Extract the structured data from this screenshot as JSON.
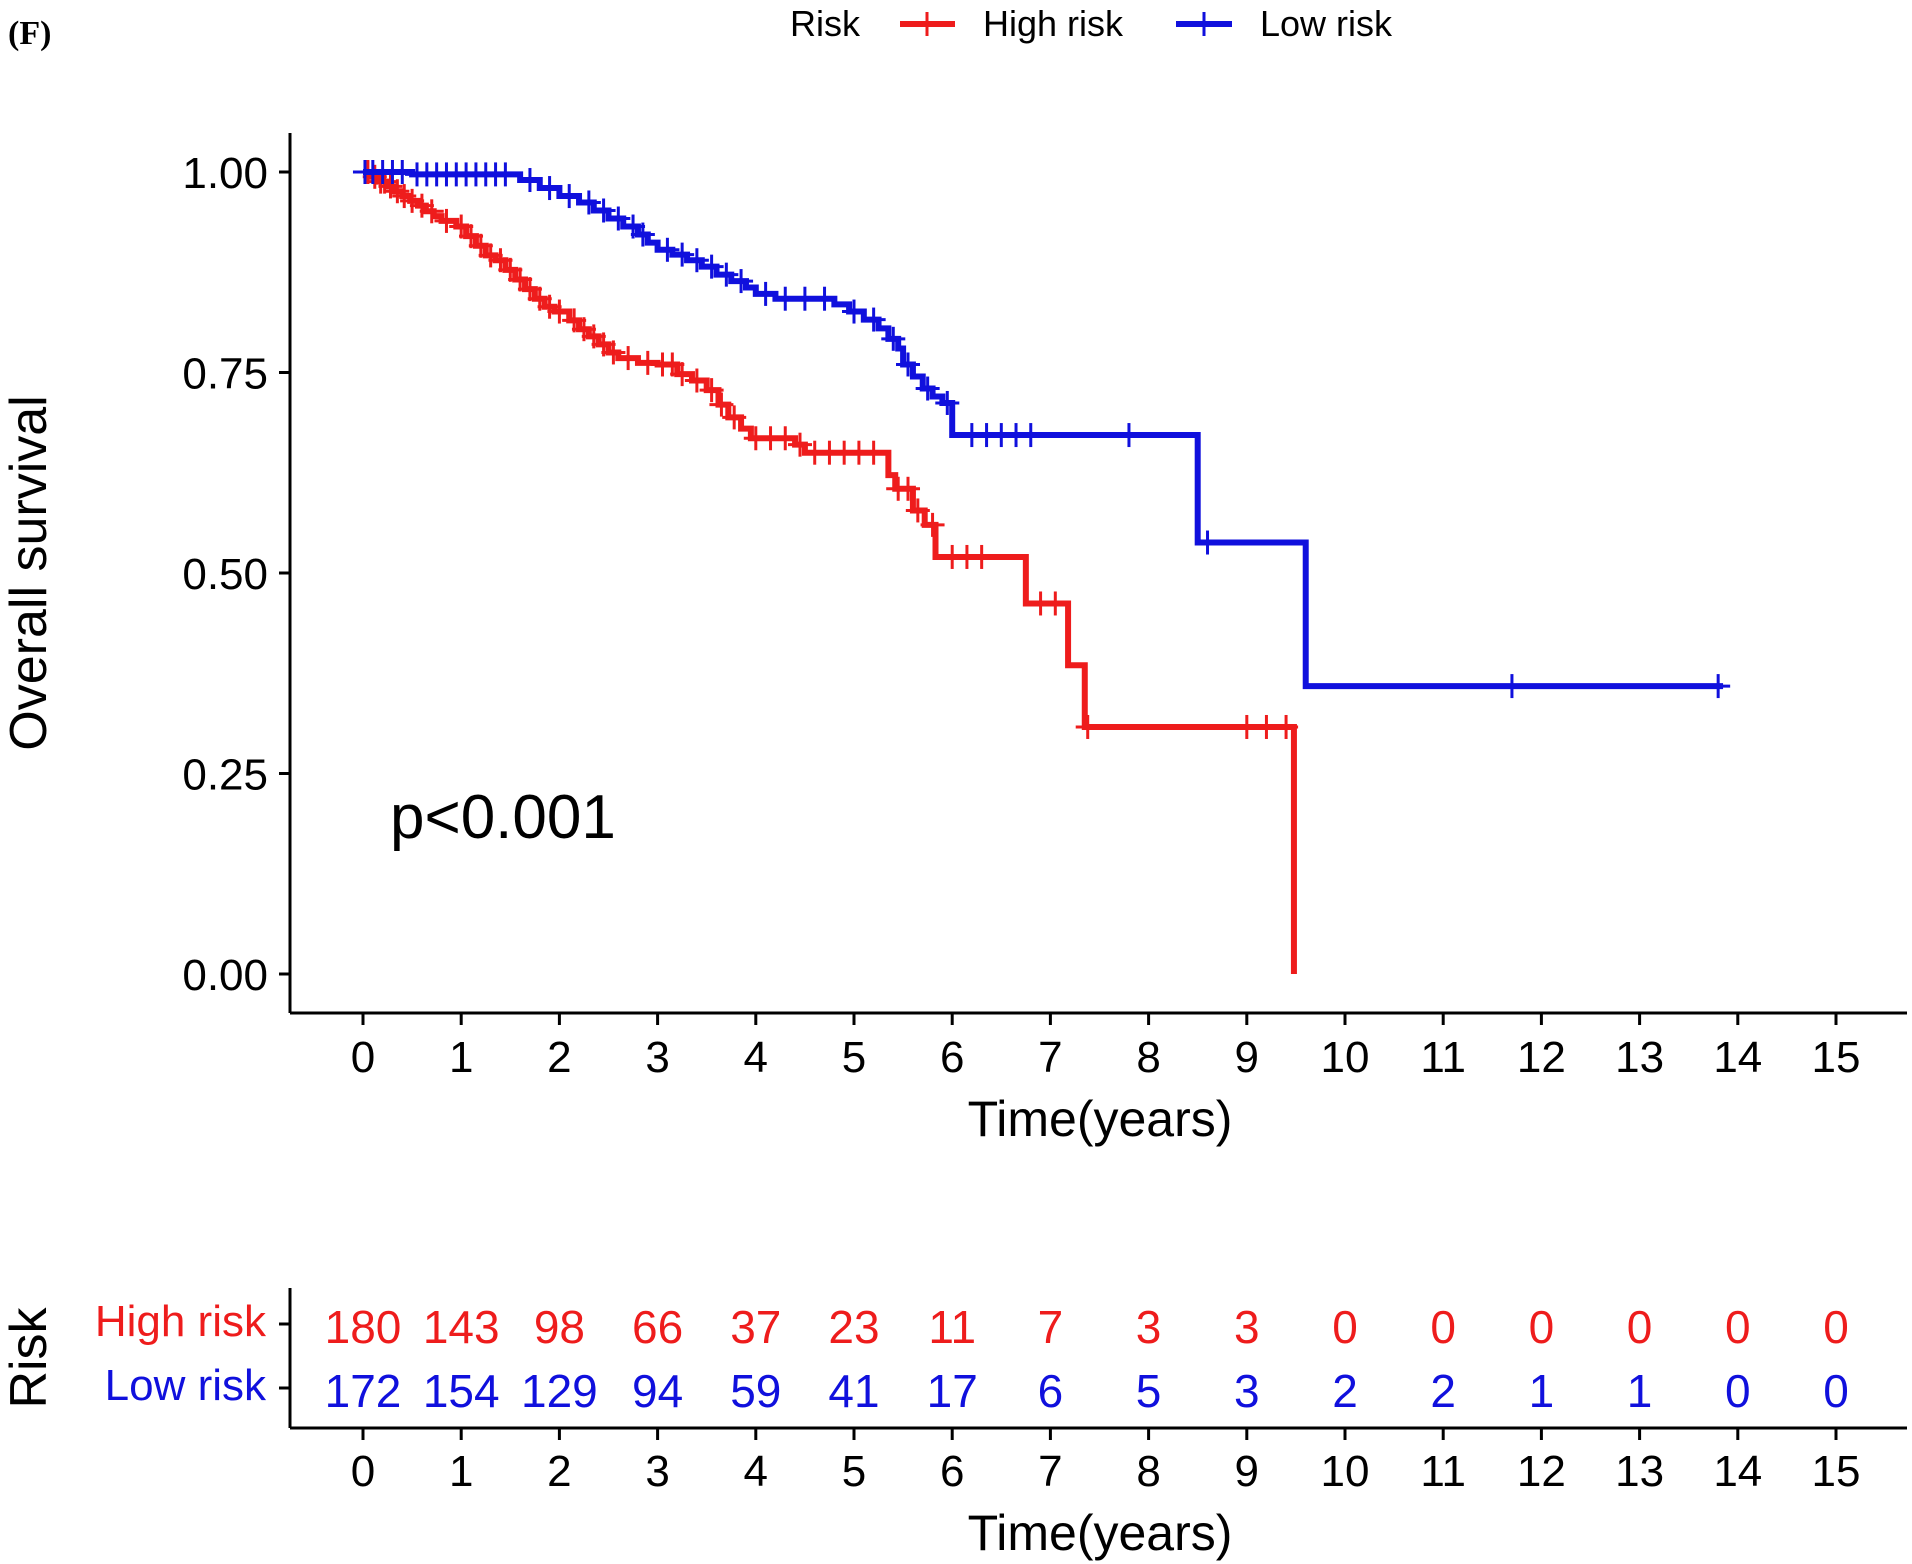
{
  "panel_label": "(F)",
  "chart_data": {
    "type": "line",
    "subtype": "kaplan-meier",
    "xlabel": "Time(years)",
    "ylabel": "Overall survival",
    "xlim": [
      0,
      15
    ],
    "ylim": [
      0,
      1
    ],
    "x_ticks": [
      0,
      1,
      2,
      3,
      4,
      5,
      6,
      7,
      8,
      9,
      10,
      11,
      12,
      13,
      14,
      15
    ],
    "y_ticks": [
      "0.00",
      "0.25",
      "0.50",
      "0.75",
      "1.00"
    ],
    "annotation": "p<0.001",
    "legend": {
      "title": "Risk",
      "position": "top",
      "entries": [
        "High risk",
        "Low risk"
      ]
    },
    "series": [
      {
        "name": "High risk",
        "color": "#ee1c1c",
        "steps": [
          [
            0,
            1.0
          ],
          [
            0.08,
            0.994
          ],
          [
            0.16,
            0.988
          ],
          [
            0.24,
            0.982
          ],
          [
            0.32,
            0.976
          ],
          [
            0.4,
            0.97
          ],
          [
            0.48,
            0.964
          ],
          [
            0.56,
            0.958
          ],
          [
            0.64,
            0.951
          ],
          [
            0.72,
            0.945
          ],
          [
            0.8,
            0.939
          ],
          [
            0.95,
            0.932
          ],
          [
            1.05,
            0.92
          ],
          [
            1.15,
            0.908
          ],
          [
            1.25,
            0.896
          ],
          [
            1.35,
            0.89
          ],
          [
            1.45,
            0.878
          ],
          [
            1.55,
            0.866
          ],
          [
            1.65,
            0.854
          ],
          [
            1.75,
            0.842
          ],
          [
            1.85,
            0.832
          ],
          [
            1.95,
            0.826
          ],
          [
            2.1,
            0.815
          ],
          [
            2.2,
            0.804
          ],
          [
            2.3,
            0.795
          ],
          [
            2.4,
            0.785
          ],
          [
            2.5,
            0.775
          ],
          [
            2.6,
            0.768
          ],
          [
            2.8,
            0.762
          ],
          [
            3.0,
            0.76
          ],
          [
            3.2,
            0.748
          ],
          [
            3.35,
            0.74
          ],
          [
            3.5,
            0.728
          ],
          [
            3.62,
            0.71
          ],
          [
            3.72,
            0.694
          ],
          [
            3.85,
            0.68
          ],
          [
            3.95,
            0.668
          ],
          [
            4.4,
            0.66
          ],
          [
            4.5,
            0.65
          ],
          [
            5.35,
            0.622
          ],
          [
            5.42,
            0.605
          ],
          [
            5.6,
            0.578
          ],
          [
            5.72,
            0.56
          ],
          [
            5.83,
            0.52
          ],
          [
            6.75,
            0.462
          ],
          [
            7.18,
            0.385
          ],
          [
            7.35,
            0.308
          ],
          [
            9.48,
            0.0
          ]
        ],
        "censor_times": [
          0.05,
          0.12,
          0.18,
          0.22,
          0.28,
          0.35,
          0.42,
          0.5,
          0.6,
          0.7,
          0.85,
          1.0,
          1.1,
          1.2,
          1.3,
          1.4,
          1.5,
          1.6,
          1.7,
          1.8,
          1.9,
          2.0,
          2.15,
          2.25,
          2.35,
          2.45,
          2.55,
          2.7,
          2.9,
          3.05,
          3.15,
          3.25,
          3.4,
          3.55,
          3.65,
          3.78,
          4.0,
          4.15,
          4.3,
          4.45,
          4.6,
          4.75,
          4.9,
          5.05,
          5.2,
          5.45,
          5.55,
          5.65,
          5.8,
          6.0,
          6.15,
          6.3,
          6.9,
          7.05,
          7.38,
          9.0,
          9.2,
          9.4
        ],
        "number_at_risk": [
          180,
          143,
          98,
          66,
          37,
          23,
          11,
          7,
          3,
          3,
          0,
          0,
          0,
          0,
          0,
          0
        ]
      },
      {
        "name": "Low risk",
        "color": "#1010dd",
        "steps": [
          [
            0,
            1.0
          ],
          [
            0.5,
            0.997
          ],
          [
            1.6,
            0.99
          ],
          [
            1.8,
            0.98
          ],
          [
            2.0,
            0.97
          ],
          [
            2.2,
            0.962
          ],
          [
            2.35,
            0.952
          ],
          [
            2.5,
            0.942
          ],
          [
            2.65,
            0.932
          ],
          [
            2.8,
            0.922
          ],
          [
            2.9,
            0.912
          ],
          [
            3.0,
            0.903
          ],
          [
            3.15,
            0.897
          ],
          [
            3.3,
            0.89
          ],
          [
            3.45,
            0.882
          ],
          [
            3.6,
            0.872
          ],
          [
            3.75,
            0.864
          ],
          [
            3.9,
            0.856
          ],
          [
            4.0,
            0.848
          ],
          [
            4.2,
            0.842
          ],
          [
            4.8,
            0.835
          ],
          [
            4.95,
            0.826
          ],
          [
            5.1,
            0.816
          ],
          [
            5.25,
            0.805
          ],
          [
            5.35,
            0.792
          ],
          [
            5.45,
            0.78
          ],
          [
            5.5,
            0.76
          ],
          [
            5.6,
            0.745
          ],
          [
            5.7,
            0.73
          ],
          [
            5.8,
            0.72
          ],
          [
            5.9,
            0.712
          ],
          [
            6.0,
            0.672
          ],
          [
            8.5,
            0.538
          ],
          [
            9.6,
            0.359
          ]
        ],
        "censor_times": [
          0.02,
          0.1,
          0.2,
          0.3,
          0.4,
          0.55,
          0.65,
          0.75,
          0.85,
          0.95,
          1.05,
          1.15,
          1.25,
          1.35,
          1.45,
          1.7,
          1.9,
          2.1,
          2.3,
          2.45,
          2.6,
          2.75,
          2.85,
          3.1,
          3.25,
          3.4,
          3.55,
          3.7,
          3.85,
          4.1,
          4.3,
          4.5,
          4.7,
          5.0,
          5.2,
          5.4,
          5.55,
          5.75,
          5.95,
          6.2,
          6.35,
          6.5,
          6.65,
          6.8,
          7.8,
          8.6,
          11.7,
          13.8
        ],
        "number_at_risk": [
          172,
          154,
          129,
          94,
          59,
          41,
          17,
          6,
          5,
          3,
          2,
          2,
          1,
          1,
          0,
          0
        ]
      }
    ],
    "risk_table": {
      "ylabel": "Risk",
      "xlabel": "Time(years)",
      "rows": [
        "High risk",
        "Low risk"
      ]
    },
    "end_time": 13.85
  }
}
